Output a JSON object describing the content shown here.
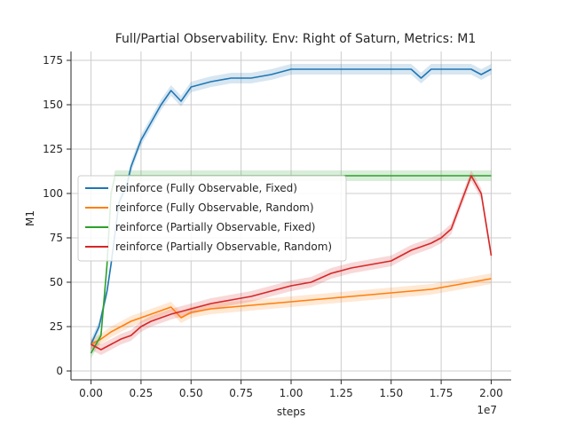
{
  "chart_data": {
    "type": "line",
    "title": "Full/Partial Observability. Env: Right of Saturn, Metrics: M1",
    "xlabel": "steps",
    "ylabel": "M1",
    "x_offset_text": "1e7",
    "xlim": [
      -0.1,
      2.1
    ],
    "ylim": [
      -5,
      180
    ],
    "xticks": [
      0.0,
      0.25,
      0.5,
      0.75,
      1.0,
      1.25,
      1.5,
      1.75,
      2.0
    ],
    "xtick_labels": [
      "0.00",
      "0.25",
      "0.50",
      "0.75",
      "1.00",
      "1.25",
      "1.50",
      "1.75",
      "2.00"
    ],
    "yticks": [
      0,
      25,
      50,
      75,
      100,
      125,
      150,
      175
    ],
    "ytick_labels": [
      "0",
      "25",
      "50",
      "75",
      "100",
      "125",
      "150",
      "175"
    ],
    "grid": true,
    "legend_position": "center-left",
    "series": [
      {
        "name": "reinforce (Fully Observable, Fixed)",
        "color": "#1f77b4",
        "x": [
          0.0,
          0.04,
          0.08,
          0.1,
          0.14,
          0.18,
          0.2,
          0.25,
          0.3,
          0.35,
          0.4,
          0.45,
          0.5,
          0.6,
          0.7,
          0.8,
          0.9,
          1.0,
          1.1,
          1.2,
          1.3,
          1.4,
          1.5,
          1.6,
          1.65,
          1.7,
          1.8,
          1.9,
          1.95,
          2.0
        ],
        "y": [
          15,
          25,
          45,
          60,
          95,
          105,
          115,
          130,
          140,
          150,
          158,
          152,
          160,
          163,
          165,
          165,
          167,
          170,
          170,
          170,
          170,
          170,
          170,
          170,
          165,
          170,
          170,
          170,
          167,
          170
        ]
      },
      {
        "name": "reinforce (Fully Observable, Random)",
        "color": "#ff7f0e",
        "x": [
          0.0,
          0.05,
          0.1,
          0.15,
          0.2,
          0.25,
          0.3,
          0.35,
          0.4,
          0.45,
          0.5,
          0.55,
          0.6,
          0.7,
          0.8,
          0.9,
          1.0,
          1.1,
          1.2,
          1.3,
          1.4,
          1.5,
          1.6,
          1.7,
          1.8,
          1.9,
          2.0
        ],
        "y": [
          15,
          18,
          22,
          25,
          28,
          30,
          32,
          34,
          36,
          30,
          33,
          34,
          35,
          36,
          37,
          38,
          39,
          40,
          41,
          42,
          43,
          44,
          45,
          46,
          48,
          50,
          52
        ]
      },
      {
        "name": "reinforce (Partially Observable, Fixed)",
        "color": "#2ca02c",
        "x": [
          0.0,
          0.05,
          0.08,
          0.1,
          0.12,
          0.15,
          0.2,
          0.3,
          0.4,
          0.5,
          1.0,
          1.5,
          2.0
        ],
        "y": [
          10,
          20,
          60,
          100,
          110,
          110,
          110,
          110,
          110,
          110,
          110,
          110,
          110
        ]
      },
      {
        "name": "reinforce (Partially Observable, Random)",
        "color": "#d62728",
        "x": [
          0.0,
          0.05,
          0.1,
          0.15,
          0.2,
          0.25,
          0.3,
          0.4,
          0.5,
          0.6,
          0.7,
          0.8,
          0.9,
          1.0,
          1.1,
          1.2,
          1.3,
          1.4,
          1.5,
          1.6,
          1.7,
          1.75,
          1.8,
          1.85,
          1.9,
          1.95,
          2.0
        ],
        "y": [
          15,
          12,
          15,
          18,
          20,
          25,
          28,
          32,
          35,
          38,
          40,
          42,
          45,
          48,
          50,
          55,
          58,
          60,
          62,
          68,
          72,
          75,
          80,
          95,
          110,
          100,
          65
        ]
      }
    ]
  }
}
